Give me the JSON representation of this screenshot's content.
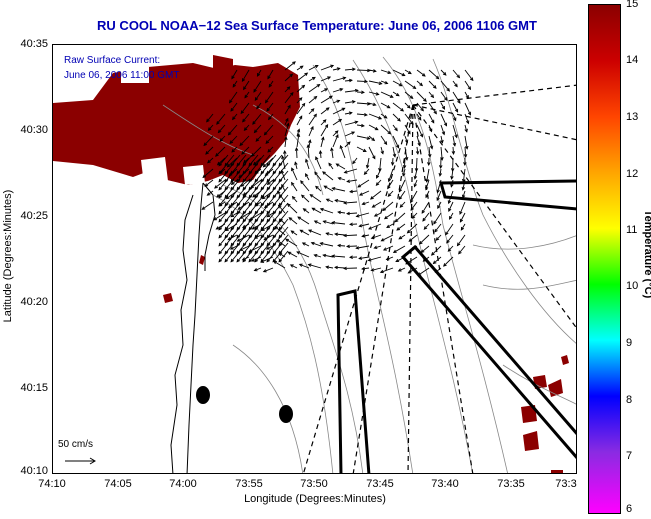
{
  "title": "RU COOL  NOAA−12  Sea Surface Temperature:  June 06, 2006 1106 GMT",
  "annotation": {
    "line1": "Raw Surface Current:",
    "line2": "June 06, 2006 11:00 GMT"
  },
  "scale_bar": {
    "label": "50 cm/s"
  },
  "axes": {
    "xlabel": "Longitude (Degrees:Minutes)",
    "ylabel": "Latitude (Degrees:Minutes)",
    "xticks": [
      "74:10",
      "74:05",
      "74:00",
      "73:55",
      "73:50",
      "73:45",
      "73:40",
      "73:35",
      "73:3"
    ],
    "yticks": [
      "40:35",
      "40:30",
      "40:25",
      "40:20",
      "40:15",
      "40:10"
    ]
  },
  "colorbar": {
    "label": "Temperature (°C)",
    "ticks": [
      "15",
      "14",
      "13",
      "12",
      "11",
      "10",
      "9",
      "8",
      "7",
      "6"
    ],
    "range": [
      6,
      15
    ]
  },
  "colors": {
    "title": "#0000b4",
    "land": "#8b0000",
    "annotation": "#0000b4"
  }
}
